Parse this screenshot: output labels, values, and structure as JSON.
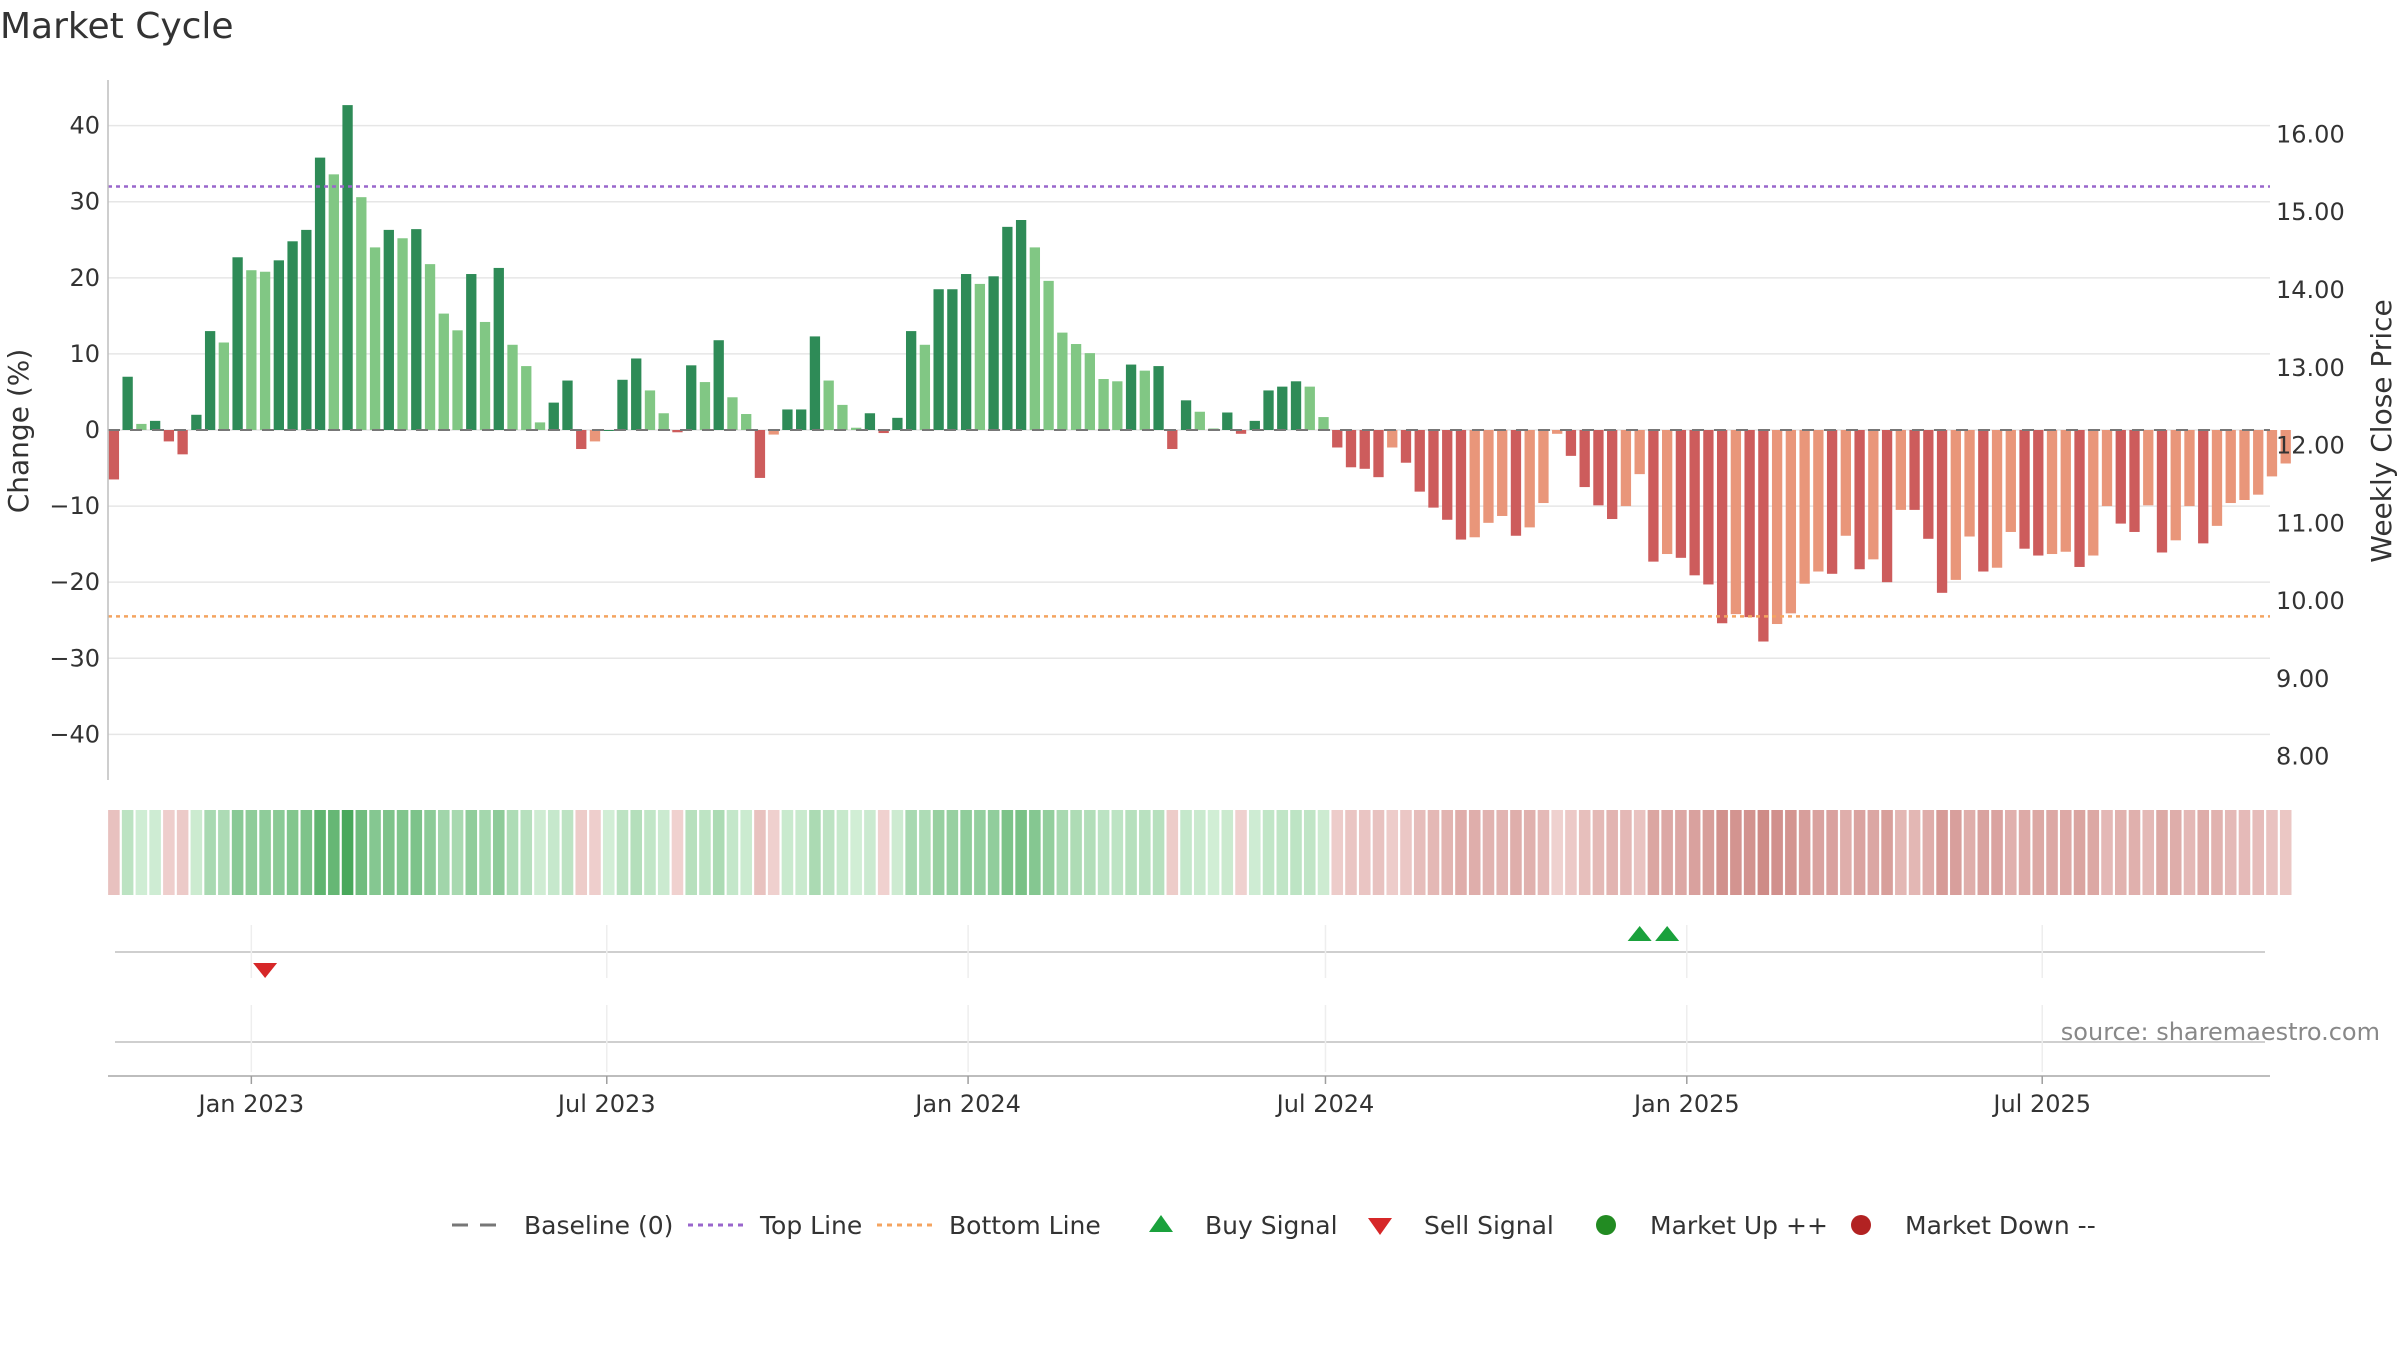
{
  "chart_data": {
    "type": "bar",
    "title": "Market Cycle",
    "ylabel": "Change (%)",
    "y2label": "Weekly Close Price",
    "ylim": [
      -46,
      46
    ],
    "y2lim": [
      7.7,
      16.7
    ],
    "yticks": [
      40,
      30,
      20,
      10,
      0,
      -10,
      -20,
      -30,
      -40
    ],
    "yticklabels": [
      "40",
      "30",
      "20",
      "10",
      "0",
      "−10",
      "−20",
      "−30",
      "−40"
    ],
    "y2ticks": [
      16,
      15,
      14,
      13,
      12,
      11,
      10,
      9,
      8
    ],
    "y2ticklabels": [
      "16.00",
      "15.00",
      "14.00",
      "13.00",
      "12.00",
      "11.00",
      "10.00",
      "9.00",
      "8.00"
    ],
    "xlim": [
      "2022-10-20",
      "2025-10-25"
    ],
    "xticks": [
      {
        "date": "2023-01-01",
        "label": "Jan 2023"
      },
      {
        "date": "2023-07-01",
        "label": "Jul 2023"
      },
      {
        "date": "2024-01-01",
        "label": "Jan 2024"
      },
      {
        "date": "2024-07-01",
        "label": "Jul 2024"
      },
      {
        "date": "2025-01-01",
        "label": "Jan 2025"
      },
      {
        "date": "2025-07-01",
        "label": "Jul 2025"
      }
    ],
    "first_week": "2022-10-23",
    "week_step_days": 7,
    "values": [
      -6.5,
      7,
      0.8,
      1.2,
      -1.5,
      -3.2,
      2,
      13,
      11.5,
      22.7,
      21,
      20.8,
      22.3,
      24.8,
      26.3,
      35.8,
      33.6,
      42.7,
      30.6,
      24,
      26.3,
      25.2,
      26.4,
      21.8,
      15.3,
      13.1,
      20.5,
      14.2,
      21.3,
      11.2,
      8.4,
      1,
      3.6,
      6.5,
      -2.5,
      -1.5,
      0,
      6.6,
      9.4,
      5.2,
      2.2,
      -0.3,
      8.5,
      6.3,
      11.8,
      4.3,
      2.1,
      -6.3,
      -0.6,
      2.7,
      2.7,
      12.3,
      6.5,
      3.3,
      0.3,
      2.2,
      -0.4,
      1.6,
      13,
      11.2,
      18.5,
      18.5,
      20.5,
      19.2,
      20.2,
      26.7,
      27.6,
      24,
      19.6,
      12.8,
      11.3,
      10.1,
      6.7,
      6.4,
      8.6,
      7.8,
      8.4,
      -2.5,
      3.9,
      2.4,
      0.2,
      2.3,
      -0.5,
      1.2,
      5.2,
      5.7,
      6.4,
      5.7,
      1.7,
      -2.3,
      -4.9,
      -5.1,
      -6.2,
      -2.3,
      -4.3,
      -8.1,
      -10.2,
      -11.8,
      -14.4,
      -14.1,
      -12.2,
      -11.3,
      -13.9,
      -12.8,
      -9.6,
      -0.5,
      -3.4,
      -7.5,
      -9.9,
      -11.7,
      -10,
      -5.8,
      -17.3,
      -16.3,
      -16.8,
      -19.1,
      -20.3,
      -25.4,
      -24.2,
      -24.6,
      -27.8,
      -25.5,
      -24.1,
      -20.2,
      -18.6,
      -18.9,
      -13.9,
      -18.3,
      -17,
      -20,
      -10.5,
      -10.5,
      -14.3,
      -21.4,
      -19.7,
      -14,
      -18.6,
      -18.1,
      -13.4,
      -15.6,
      -16.5,
      -16.3,
      -16,
      -18,
      -16.5,
      -10,
      -12.3,
      -13.4,
      -9.9,
      -16.1,
      -14.5,
      -10,
      -14.9,
      -12.6,
      -9.6,
      -9.2,
      -8.5,
      -6.1,
      -4.4
    ],
    "signals": [
      {
        "type": "sell",
        "date": "2023-01-08"
      },
      {
        "type": "buy",
        "date": "2024-12-08"
      },
      {
        "type": "buy",
        "date": "2024-12-22"
      }
    ],
    "top_line": 32,
    "bottom_line": -24.5,
    "baseline": 0,
    "colors": {
      "up_strong": "#2e8b57",
      "up_light": "#81c784",
      "down_strong": "#cd5c5c",
      "down_light": "#e9967a",
      "top_line": "#9966cc",
      "bottom_line": "#f4a460",
      "buy": "#1aa13c",
      "sell": "#d62728",
      "market_up": "#228b22",
      "market_down": "#b22222",
      "baseline": "#777777",
      "grid": "#e6e6e6"
    },
    "legend": {
      "placement": "bottom",
      "items": [
        {
          "label": "Baseline (0)",
          "marker": "dash",
          "color": "#777777"
        },
        {
          "label": "Top Line",
          "marker": "dotted",
          "color": "#9966cc"
        },
        {
          "label": "Bottom Line",
          "marker": "dotted",
          "color": "#f4a460"
        },
        {
          "label": "Buy Signal",
          "marker": "triangle-up",
          "color": "#1aa13c"
        },
        {
          "label": "Sell Signal",
          "marker": "triangle-down",
          "color": "#d62728"
        },
        {
          "label": "Market Up ++",
          "marker": "circle",
          "color": "#228b22"
        },
        {
          "label": "Market Down --",
          "marker": "circle",
          "color": "#b22222"
        }
      ]
    },
    "source": "source: sharemaestro.com"
  }
}
